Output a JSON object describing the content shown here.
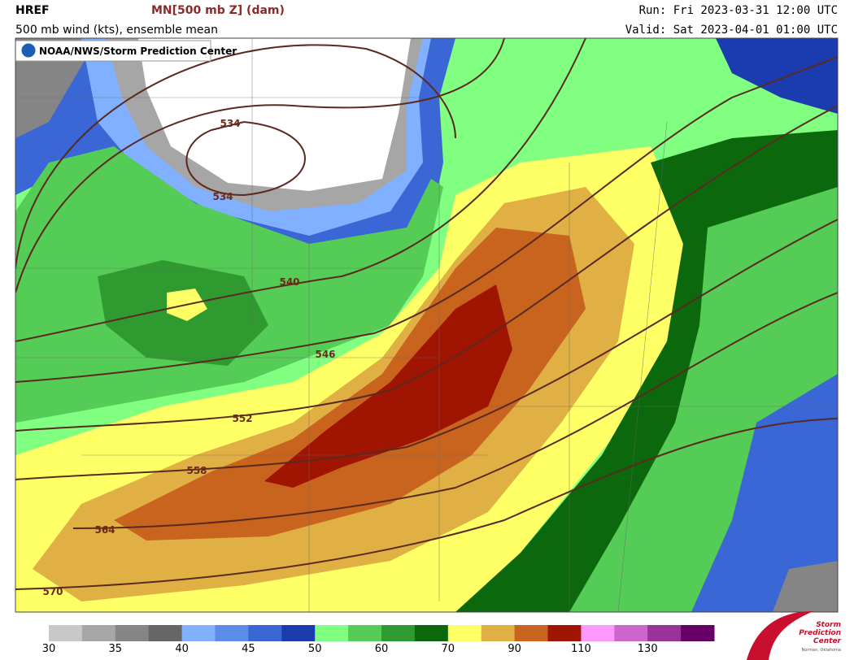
{
  "header": {
    "model": "HREF",
    "field": "MN[500 mb Z] (dam)",
    "subtitle": "500 mb wind (kts), ensemble mean",
    "run": "Run: Fri 2023-03-31 12:00 UTC",
    "valid": "Valid: Sat 2023-04-01 01:00 UTC"
  },
  "map": {
    "badge": "NOAA/NWS/Storm Prediction Center",
    "contour_labels": [
      534,
      534,
      540,
      546,
      552,
      558,
      564,
      570
    ]
  },
  "colorbar": {
    "colors": [
      "#c8c8c8",
      "#a6a6a6",
      "#858585",
      "#666666",
      "#80b0ff",
      "#5a8ce8",
      "#3a66d6",
      "#1a3cae",
      "#80ff80",
      "#55cc55",
      "#2f9a2f",
      "#0c680c",
      "#ffff66",
      "#e0b044",
      "#c8641e",
      "#a01402",
      "#ff99ff",
      "#cc66cc",
      "#993399",
      "#660066"
    ],
    "labels": [
      30,
      35,
      40,
      45,
      50,
      60,
      70,
      90,
      110,
      130
    ]
  },
  "logo": {
    "title": "Storm Prediction Center",
    "subtitle": "Norman, Oklahoma"
  }
}
